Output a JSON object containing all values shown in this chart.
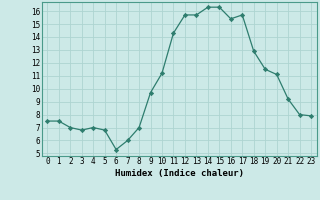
{
  "x": [
    0,
    1,
    2,
    3,
    4,
    5,
    6,
    7,
    8,
    9,
    10,
    11,
    12,
    13,
    14,
    15,
    16,
    17,
    18,
    19,
    20,
    21,
    22,
    23
  ],
  "y": [
    7.5,
    7.5,
    7.0,
    6.8,
    7.0,
    6.8,
    5.3,
    6.0,
    7.0,
    9.7,
    11.2,
    14.3,
    15.7,
    15.7,
    16.3,
    16.3,
    15.4,
    15.7,
    12.9,
    11.5,
    11.1,
    9.2,
    8.0,
    7.9
  ],
  "line_color": "#2e7d6e",
  "marker": "D",
  "marker_size": 2.2,
  "bg_color": "#cce9e7",
  "grid_color": "#aed4d1",
  "xlabel": "Humidex (Indice chaleur)",
  "xlim": [
    -0.5,
    23.5
  ],
  "ylim": [
    4.8,
    16.7
  ],
  "yticks": [
    5,
    6,
    7,
    8,
    9,
    10,
    11,
    12,
    13,
    14,
    15,
    16
  ],
  "xticks": [
    0,
    1,
    2,
    3,
    4,
    5,
    6,
    7,
    8,
    9,
    10,
    11,
    12,
    13,
    14,
    15,
    16,
    17,
    18,
    19,
    20,
    21,
    22,
    23
  ],
  "xtick_labels": [
    "0",
    "1",
    "2",
    "3",
    "4",
    "5",
    "6",
    "7",
    "8",
    "9",
    "10",
    "11",
    "12",
    "13",
    "14",
    "15",
    "16",
    "17",
    "18",
    "19",
    "20",
    "21",
    "22",
    "23"
  ],
  "tick_fontsize": 5.5,
  "label_fontsize": 6.5
}
